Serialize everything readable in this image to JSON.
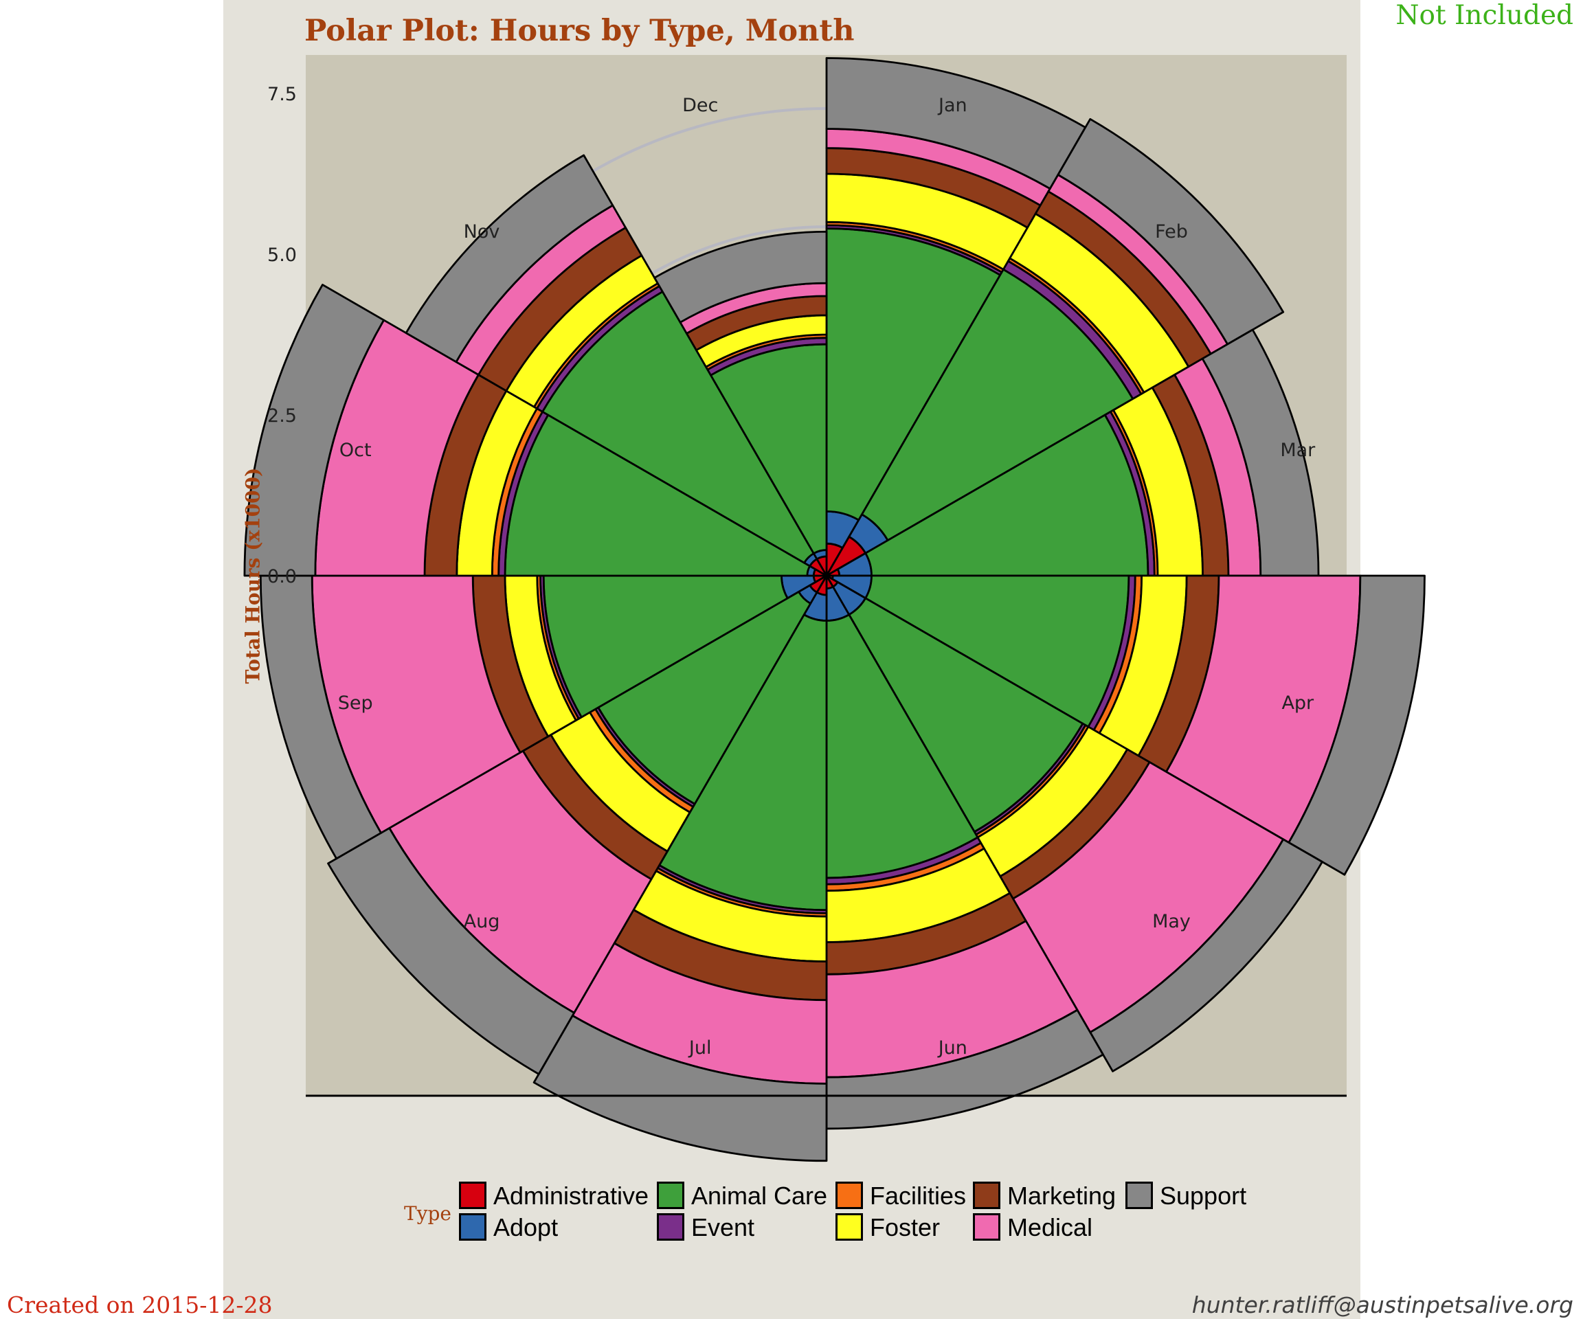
{
  "page": {
    "title": "Polar Plot: Hours by Type, Month",
    "corner_note": "Not Included",
    "created_on": "Created on 2015-12-28",
    "email": "hunter.ratliff@austinpetsalive.org"
  },
  "colors": {
    "panel_bg": "#e4e2da",
    "plot_bg": "#cac6b5",
    "grid": "#b8b8c2",
    "title": "#a4410f",
    "not_included": "#3cb219",
    "created_on": "#d02a16"
  },
  "chart_data": {
    "type": "bar",
    "coordinate_system": "polar",
    "stacked": true,
    "title": "Polar Plot: Hours by Type, Month",
    "ylabel": "Total Hours (x1000)",
    "xlabel": "",
    "yticks": [
      "0.0",
      "2.5",
      "5.0",
      "7.5"
    ],
    "ylim": [
      0,
      10
    ],
    "grid": true,
    "legend_title": "Type",
    "legend_position": "bottom",
    "categories": [
      "Jan",
      "Feb",
      "Mar",
      "Apr",
      "May",
      "Jun",
      "Jul",
      "Aug",
      "Sep",
      "Oct",
      "Nov",
      "Dec"
    ],
    "series": [
      {
        "name": "Administrative",
        "color": "#d7000f",
        "values": [
          0.5,
          0.7,
          0.2,
          0.1,
          0.2,
          0.2,
          0.3,
          0.3,
          0.2,
          0.2,
          0.3,
          0.3
        ]
      },
      {
        "name": "Adopt",
        "color": "#2e68ae",
        "values": [
          0.5,
          0.4,
          0.5,
          0.6,
          0.5,
          0.5,
          0.4,
          0.2,
          0.5,
          0.1,
          0.1,
          0.1
        ]
      },
      {
        "name": "Animal Care",
        "color": "#3ea03b",
        "values": [
          4.4,
          4.4,
          4.3,
          4.0,
          3.9,
          4.0,
          4.5,
          3.6,
          3.7,
          4.7,
          4.7,
          3.2
        ]
      },
      {
        "name": "Event",
        "color": "#7a2f8a",
        "values": [
          0.05,
          0.15,
          0.1,
          0.1,
          0.05,
          0.1,
          0.05,
          0.05,
          0.05,
          0.1,
          0.1,
          0.1
        ]
      },
      {
        "name": "Facilities",
        "color": "#f76f14",
        "values": [
          0.05,
          0.05,
          0.05,
          0.1,
          0.05,
          0.1,
          0.05,
          0.1,
          0.05,
          0.1,
          0.05,
          0.05
        ]
      },
      {
        "name": "Foster",
        "color": "#ffff1f",
        "values": [
          0.75,
          0.8,
          0.7,
          0.7,
          0.7,
          0.8,
          0.7,
          0.7,
          0.5,
          0.55,
          0.5,
          0.3
        ]
      },
      {
        "name": "Marketing",
        "color": "#8f3c1a",
        "values": [
          0.4,
          0.4,
          0.4,
          0.5,
          0.4,
          0.5,
          0.6,
          0.5,
          0.5,
          0.5,
          0.5,
          0.3
        ]
      },
      {
        "name": "Medical",
        "color": "#f06ab0",
        "values": [
          0.3,
          0.3,
          0.5,
          2.2,
          2.4,
          1.6,
          1.3,
          2.4,
          2.5,
          1.7,
          0.4,
          0.2
        ]
      },
      {
        "name": "Support",
        "color": "#878787",
        "values": [
          1.1,
          1.0,
          0.9,
          1.0,
          0.7,
          0.8,
          1.2,
          1.1,
          0.8,
          1.1,
          0.9,
          0.8
        ]
      }
    ]
  }
}
